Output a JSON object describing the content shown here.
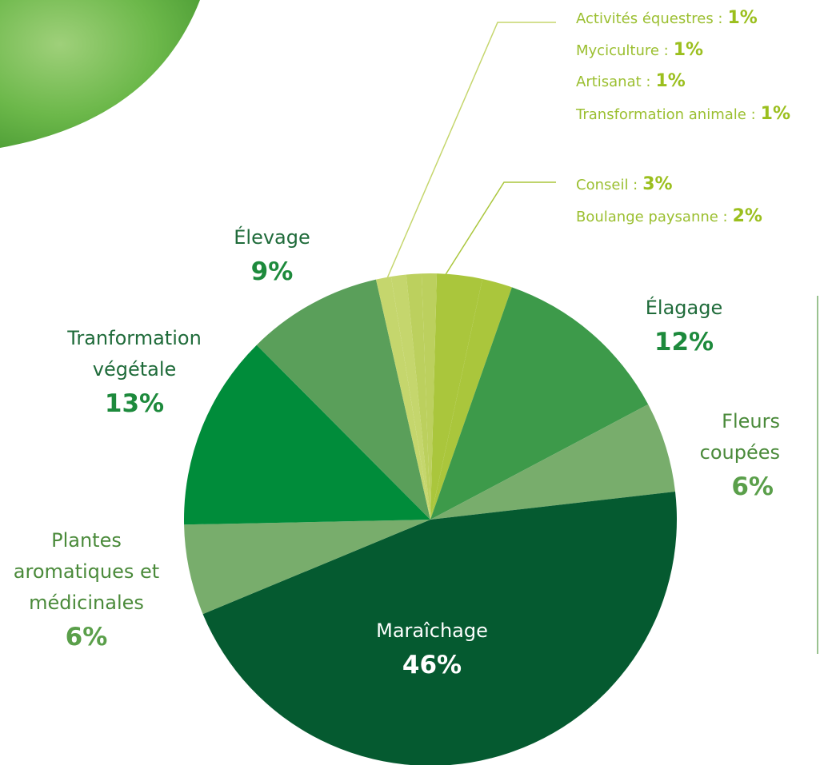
{
  "chart_data": {
    "type": "pie",
    "categories": [
      "Conseil :",
      "Boulange paysanne :",
      "Élagage",
      "Fleurs coupées",
      "Maraîchage",
      "Plantes aromatiques et médicinales",
      "Tranformation végétale",
      "Élevage",
      "Activités équestres :",
      "Myciculture :",
      "Artisanat :",
      "Transformation animale :"
    ],
    "values": [
      3,
      2,
      12,
      6,
      46,
      6,
      13,
      9,
      1,
      1,
      1,
      1
    ],
    "value_labels": [
      "3%",
      "2%",
      "12%",
      "6%",
      "46%",
      "6%",
      "13%",
      "9%",
      "1%",
      "1%",
      "1%",
      "1%"
    ],
    "colors": [
      "#aac63c",
      "#aac63c",
      "#3d9a4a",
      "#78ad6c",
      "#055a30",
      "#78ad6c",
      "#008c3a",
      "#5a9f5a",
      "#c5d66d",
      "#c5d66d",
      "#bcd05e",
      "#bcd05e"
    ]
  }
}
